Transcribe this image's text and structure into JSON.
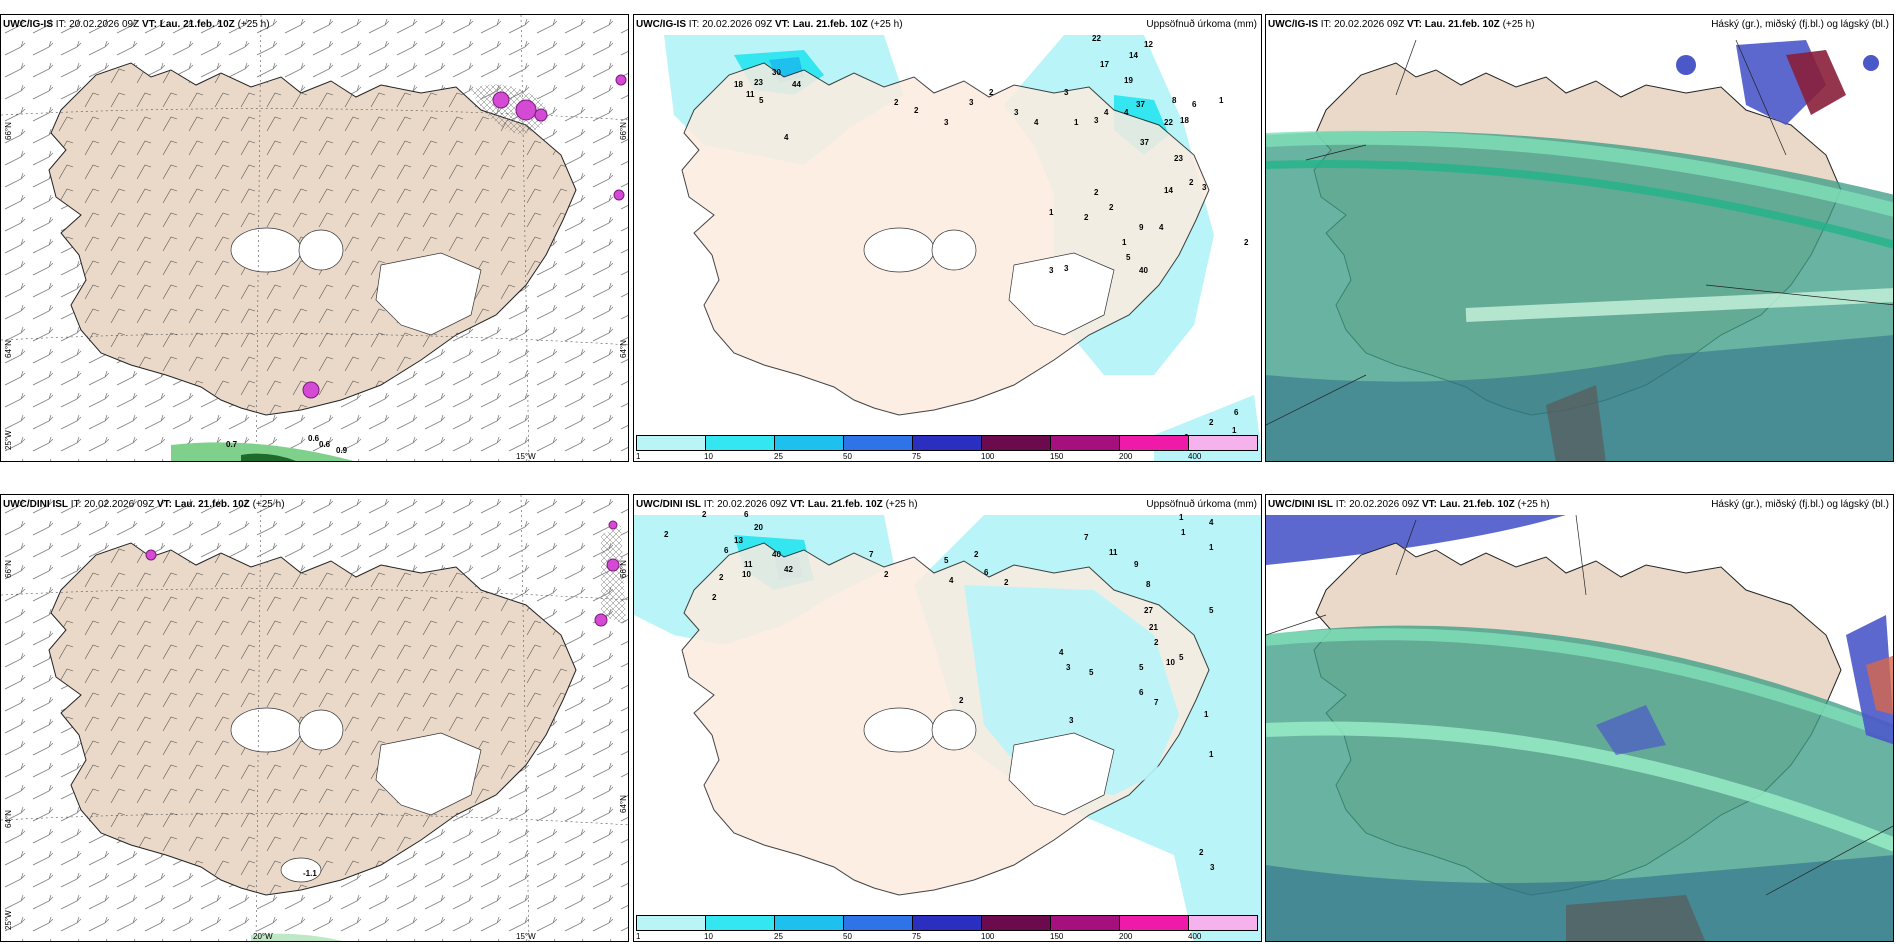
{
  "top": {
    "model": "UWC/IG-IS",
    "it_label": "IT:",
    "it_value": "20.02.2026 09Z",
    "vt_label": "VT:",
    "vt_value": "Lau. 21.feb. 10Z",
    "lead": "(+25 h)"
  },
  "bottom": {
    "model": "UWC/DINI ISL",
    "it_label": "IT:",
    "it_value": "20.02.2026 09Z",
    "vt_label": "VT:",
    "vt_value": "Lau. 21.feb. 10Z",
    "lead": "(+25 h)"
  },
  "precip_title": "Uppsöfnuð úrkoma (mm)",
  "cloud_title": "Háský (gr.), miðský (fj.bl.) og lágský (bl.)",
  "legend": {
    "ticks": [
      "1",
      "10",
      "25",
      "50",
      "75",
      "100",
      "150",
      "200",
      "400"
    ],
    "colors": [
      "#b8f4f8",
      "#33e6f0",
      "#1ec0ee",
      "#2f73e8",
      "#2a2fbf",
      "#6b0a4d",
      "#a6107e",
      "#f01aa8",
      "#f5b2ec"
    ]
  },
  "axes": {
    "lat_66": "66°N",
    "lat_64": "64°N",
    "lon_25": "25°W",
    "lon_20": "20°W",
    "lon_15": "15°W"
  },
  "wind_top_labels": [
    "0.7",
    "0.6",
    "0.6",
    "0.9"
  ],
  "wind_bottom_labels": [
    "-1.1"
  ],
  "precip_top_labels": [
    "22",
    "12",
    "14",
    "17",
    "19",
    "30",
    "44",
    "18",
    "23",
    "11",
    "5",
    "4",
    "2",
    "2",
    "3",
    "3",
    "2",
    "3",
    "4",
    "3",
    "1",
    "3",
    "4",
    "4",
    "8",
    "1",
    "37",
    "6",
    "22",
    "18",
    "37",
    "23",
    "2",
    "3",
    "14",
    "1",
    "2",
    "2",
    "2",
    "9",
    "4",
    "1",
    "5",
    "40",
    "3",
    "3",
    "2",
    "6",
    "2",
    "1",
    "6"
  ],
  "precip_bottom_labels": [
    "2",
    "6",
    "2",
    "20",
    "13",
    "40",
    "42",
    "11",
    "10",
    "6",
    "2",
    "2",
    "7",
    "2",
    "5",
    "4",
    "2",
    "6",
    "2",
    "7",
    "11",
    "9",
    "8",
    "1",
    "1",
    "4",
    "1",
    "27",
    "5",
    "21",
    "2",
    "10",
    "5",
    "4",
    "3",
    "5",
    "5",
    "6",
    "7",
    "3",
    "2",
    "1",
    "1",
    "2",
    "3"
  ]
}
